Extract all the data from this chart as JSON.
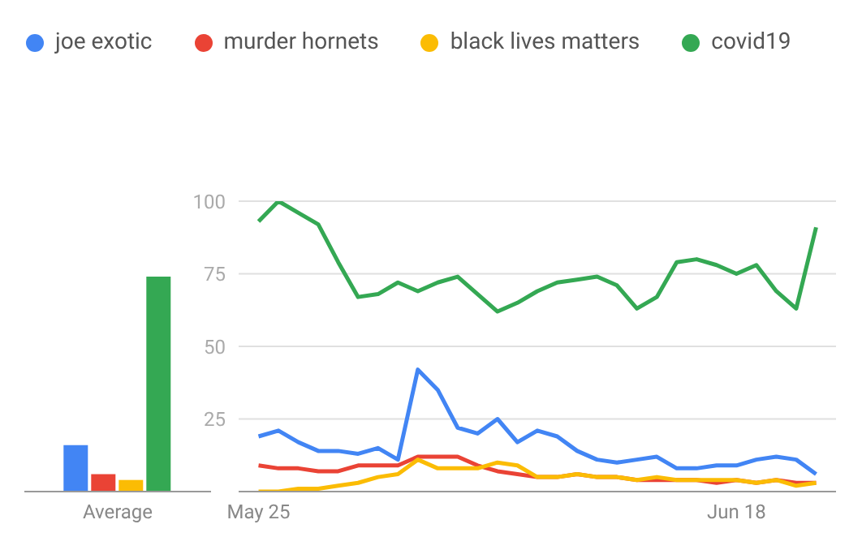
{
  "chart_data": [
    {
      "type": "bar",
      "categories": [
        "Average"
      ],
      "series": [
        {
          "color": "#4285f4",
          "values": [
            16
          ]
        },
        {
          "color": "#ea4335",
          "values": [
            6
          ]
        },
        {
          "color": "#fbbc04",
          "values": [
            4
          ]
        },
        {
          "color": "#34a853",
          "values": [
            74
          ]
        }
      ],
      "ylim": [
        0,
        100
      ],
      "tick_labels": "x",
      "grid": false,
      "legend": false
    },
    {
      "type": "line",
      "x": [
        "--05-25",
        "--05-26",
        "--05-27",
        "--05-28",
        "--05-29",
        "--05-30",
        "--05-31",
        "--06-01",
        "--06-02",
        "--06-03",
        "--06-04",
        "--06-05",
        "--06-06",
        "--06-07",
        "--06-08",
        "--06-09",
        "--06-10",
        "--06-11",
        "--06-12",
        "--06-13",
        "--06-14",
        "--06-15",
        "--06-16",
        "--06-17",
        "--06-18",
        "--06-19",
        "--06-20",
        "--06-21",
        "--06-22"
      ],
      "series": [
        {
          "name": "joe exotic",
          "color": "#4285f4",
          "values": [
            19,
            21,
            17,
            14,
            14,
            13,
            15,
            11,
            42,
            35,
            22,
            20,
            25,
            17,
            21,
            19,
            14,
            11,
            10,
            11,
            12,
            8,
            8,
            9,
            9,
            11,
            12,
            11,
            6
          ]
        },
        {
          "name": "murder hornets",
          "color": "#ea4335",
          "values": [
            9,
            8,
            8,
            7,
            7,
            9,
            9,
            9,
            12,
            12,
            12,
            9,
            7,
            6,
            5,
            5,
            6,
            5,
            5,
            4,
            4,
            4,
            4,
            3,
            4,
            3,
            4,
            3,
            3
          ]
        },
        {
          "name": "black lives matters",
          "color": "#fbbc04",
          "values": [
            0,
            0,
            1,
            1,
            2,
            3,
            5,
            6,
            11,
            8,
            8,
            8,
            10,
            9,
            5,
            5,
            6,
            5,
            5,
            4,
            5,
            4,
            4,
            4,
            4,
            3,
            4,
            2,
            3
          ]
        },
        {
          "name": "covid19",
          "color": "#34a853",
          "values": [
            93,
            100,
            96,
            92,
            79,
            67,
            68,
            72,
            69,
            72,
            74,
            68,
            62,
            65,
            69,
            72,
            73,
            74,
            71,
            63,
            67,
            79,
            80,
            78,
            75,
            78,
            69,
            63,
            91
          ]
        }
      ],
      "xlim": [
        "--05-24",
        "--06-23"
      ],
      "xticks": [
        {
          "value": "--05-25",
          "label": "May 25"
        },
        {
          "value": "--06-18",
          "label": "Jun 18"
        }
      ],
      "ylim": [
        0,
        100
      ],
      "yticks": [
        {
          "value": 0,
          "label": null
        },
        25,
        50,
        75,
        100
      ],
      "grid": "y",
      "legend": "top left",
      "marker": "none",
      "line_style": "solid"
    }
  ]
}
